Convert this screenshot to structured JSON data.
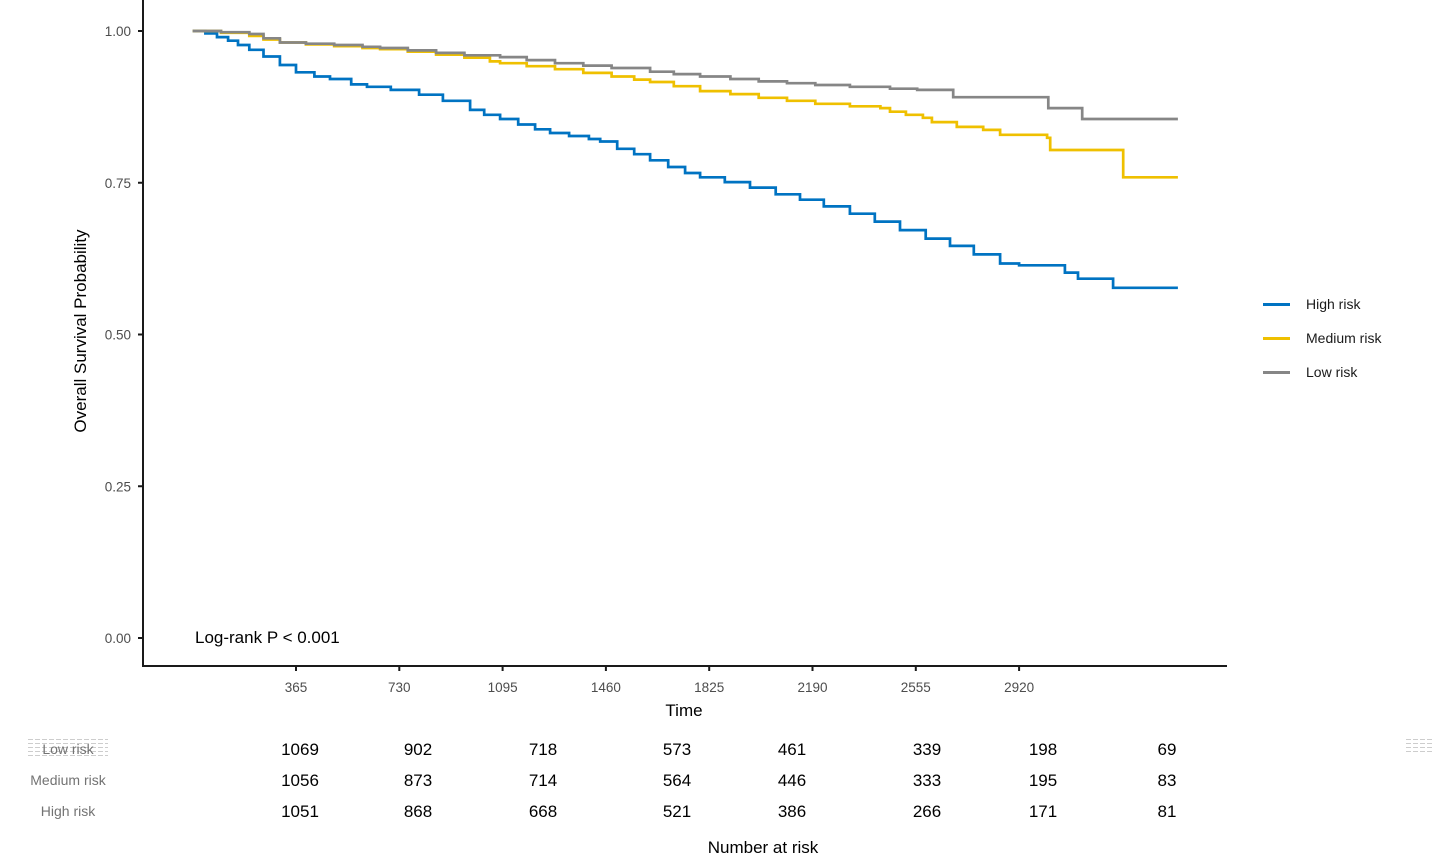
{
  "chart_data": {
    "type": "line",
    "subtype": "kaplan-meier-step",
    "title": "",
    "xlabel": "Time",
    "ylabel": "Overall Survival Probability",
    "xlim": [
      -175,
      3660
    ],
    "ylim": [
      0,
      1.05
    ],
    "x_ticks": [
      365,
      730,
      1095,
      1460,
      1825,
      2190,
      2555,
      2920
    ],
    "y_ticks": [
      0,
      0.25,
      0.5,
      0.75,
      1
    ],
    "y_tick_labels": [
      "0.00",
      "0.25",
      "0.50",
      "0.75",
      "1.00"
    ],
    "grid": false,
    "legend_position": "right",
    "annotation": "Log-rank P < 0.001",
    "series": [
      {
        "name": "High risk",
        "color": "#0073C2",
        "points": [
          [
            0,
            1.0
          ],
          [
            45,
            0.996
          ],
          [
            86,
            0.99
          ],
          [
            125,
            0.984
          ],
          [
            160,
            0.977
          ],
          [
            200,
            0.969
          ],
          [
            250,
            0.958
          ],
          [
            308,
            0.944
          ],
          [
            365,
            0.932
          ],
          [
            430,
            0.925
          ],
          [
            485,
            0.921
          ],
          [
            560,
            0.912
          ],
          [
            616,
            0.908
          ],
          [
            700,
            0.903
          ],
          [
            800,
            0.895
          ],
          [
            884,
            0.885
          ],
          [
            980,
            0.87
          ],
          [
            1030,
            0.862
          ],
          [
            1086,
            0.855
          ],
          [
            1150,
            0.846
          ],
          [
            1210,
            0.838
          ],
          [
            1263,
            0.832
          ],
          [
            1330,
            0.827
          ],
          [
            1400,
            0.822
          ],
          [
            1440,
            0.818
          ],
          [
            1500,
            0.806
          ],
          [
            1560,
            0.797
          ],
          [
            1616,
            0.787
          ],
          [
            1680,
            0.776
          ],
          [
            1740,
            0.766
          ],
          [
            1793,
            0.759
          ],
          [
            1880,
            0.751
          ],
          [
            1969,
            0.742
          ],
          [
            2060,
            0.731
          ],
          [
            2146,
            0.722
          ],
          [
            2230,
            0.711
          ],
          [
            2322,
            0.699
          ],
          [
            2410,
            0.686
          ],
          [
            2499,
            0.672
          ],
          [
            2590,
            0.658
          ],
          [
            2676,
            0.646
          ],
          [
            2760,
            0.632
          ],
          [
            2853,
            0.617
          ],
          [
            2920,
            0.614
          ],
          [
            3082,
            0.602
          ],
          [
            3128,
            0.592
          ],
          [
            3252,
            0.577
          ],
          [
            3481,
            0.577
          ]
        ]
      },
      {
        "name": "Medium risk",
        "color": "#EFC000",
        "points": [
          [
            0,
            1.0
          ],
          [
            100,
            0.997
          ],
          [
            200,
            0.992
          ],
          [
            250,
            0.986
          ],
          [
            308,
            0.981
          ],
          [
            400,
            0.978
          ],
          [
            500,
            0.975
          ],
          [
            600,
            0.972
          ],
          [
            662,
            0.97
          ],
          [
            760,
            0.966
          ],
          [
            860,
            0.961
          ],
          [
            960,
            0.956
          ],
          [
            1050,
            0.95
          ],
          [
            1086,
            0.947
          ],
          [
            1180,
            0.942
          ],
          [
            1280,
            0.937
          ],
          [
            1380,
            0.931
          ],
          [
            1480,
            0.925
          ],
          [
            1560,
            0.92
          ],
          [
            1616,
            0.916
          ],
          [
            1700,
            0.909
          ],
          [
            1793,
            0.901
          ],
          [
            1900,
            0.896
          ],
          [
            2000,
            0.89
          ],
          [
            2100,
            0.885
          ],
          [
            2200,
            0.88
          ],
          [
            2322,
            0.876
          ],
          [
            2430,
            0.873
          ],
          [
            2464,
            0.867
          ],
          [
            2520,
            0.862
          ],
          [
            2580,
            0.857
          ],
          [
            2612,
            0.85
          ],
          [
            2700,
            0.842
          ],
          [
            2793,
            0.837
          ],
          [
            2853,
            0.829
          ],
          [
            3019,
            0.824
          ],
          [
            3030,
            0.804
          ],
          [
            3288,
            0.759
          ],
          [
            3481,
            0.759
          ]
        ]
      },
      {
        "name": "Low risk",
        "color": "#868686",
        "points": [
          [
            0,
            1.0
          ],
          [
            100,
            0.998
          ],
          [
            200,
            0.995
          ],
          [
            250,
            0.988
          ],
          [
            308,
            0.981
          ],
          [
            400,
            0.979
          ],
          [
            500,
            0.977
          ],
          [
            600,
            0.974
          ],
          [
            662,
            0.972
          ],
          [
            760,
            0.968
          ],
          [
            860,
            0.964
          ],
          [
            960,
            0.96
          ],
          [
            1086,
            0.957
          ],
          [
            1180,
            0.952
          ],
          [
            1280,
            0.947
          ],
          [
            1380,
            0.943
          ],
          [
            1480,
            0.939
          ],
          [
            1616,
            0.933
          ],
          [
            1700,
            0.929
          ],
          [
            1793,
            0.925
          ],
          [
            1900,
            0.921
          ],
          [
            2000,
            0.917
          ],
          [
            2100,
            0.914
          ],
          [
            2200,
            0.911
          ],
          [
            2322,
            0.908
          ],
          [
            2464,
            0.905
          ],
          [
            2560,
            0.903
          ],
          [
            2687,
            0.891
          ],
          [
            3023,
            0.873
          ],
          [
            3143,
            0.855
          ],
          [
            3481,
            0.855
          ]
        ]
      }
    ]
  },
  "legend": {
    "items": [
      {
        "label": "High risk",
        "color": "#0073C2"
      },
      {
        "label": "Medium risk",
        "color": "#EFC000"
      },
      {
        "label": "Low risk",
        "color": "#868686"
      }
    ]
  },
  "risk_table": {
    "title": "Number at risk",
    "time_points": [
      365,
      730,
      1095,
      1460,
      1825,
      2190,
      2555,
      2920
    ],
    "rows": [
      {
        "label": "Low risk",
        "selected": true,
        "values": [
          1069,
          902,
          718,
          573,
          461,
          339,
          198,
          69
        ]
      },
      {
        "label": "Medium risk",
        "selected": false,
        "values": [
          1056,
          873,
          714,
          564,
          446,
          333,
          195,
          83
        ]
      },
      {
        "label": "High risk",
        "selected": false,
        "values": [
          1051,
          868,
          668,
          521,
          386,
          266,
          171,
          81
        ]
      }
    ]
  },
  "colors": {
    "axis": "#1a1a1a",
    "tick_text": "#4d4d4d",
    "risk_label_text": "#737373"
  }
}
